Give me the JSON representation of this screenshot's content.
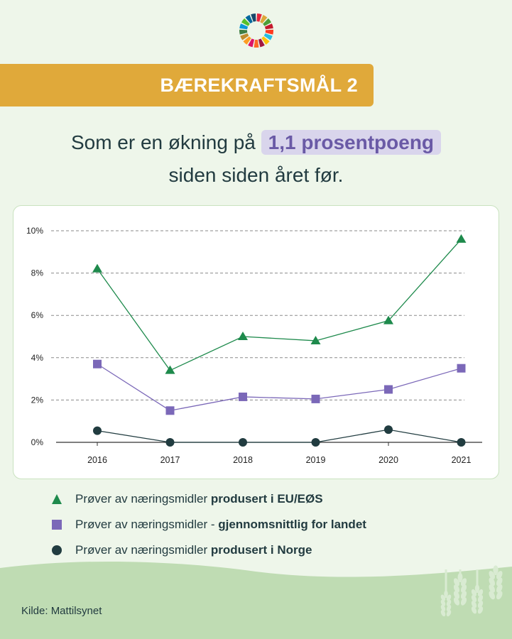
{
  "header": {
    "banner_title": "BÆREKRAFTSMÅL 2",
    "sdg_wheel_icon": "sdg-wheel-icon"
  },
  "headline": {
    "line1_prefix": "Som er en økning på ",
    "highlight": "1,1 prosentpoeng",
    "line2": "siden siden året før."
  },
  "chart_data": {
    "type": "line",
    "x": [
      "2016",
      "2017",
      "2018",
      "2019",
      "2020",
      "2021"
    ],
    "y_ticks": [
      "0%",
      "2%",
      "4%",
      "6%",
      "8%",
      "10%"
    ],
    "ylim": [
      0,
      10
    ],
    "grid": true,
    "series": [
      {
        "values": [
          8.2,
          3.4,
          5.0,
          4.8,
          5.75,
          9.6
        ],
        "color": "#1e8a4c",
        "marker": "triangle"
      },
      {
        "values": [
          3.7,
          1.5,
          2.15,
          2.05,
          2.5,
          3.5
        ],
        "color": "#7b68b8",
        "marker": "square"
      },
      {
        "values": [
          0.55,
          0.0,
          0.0,
          0.0,
          0.6,
          0.0
        ],
        "color": "#213c40",
        "marker": "circle"
      }
    ]
  },
  "legend": [
    {
      "prefix": "Prøver av næringsmidler ",
      "bold": "produsert i EU/EØS",
      "marker": "triangle",
      "color": "#1e8a4c"
    },
    {
      "prefix": "Prøver av næringsmidler - ",
      "bold": "gjennomsnittlig for landet",
      "marker": "square",
      "color": "#7b68b8"
    },
    {
      "prefix": "Prøver av næringsmidler ",
      "bold": "produsert i Norge",
      "marker": "circle",
      "color": "#213c40"
    }
  ],
  "footer": {
    "source": "Kilde: Mattilsynet"
  },
  "colors": {
    "banner": "#e0a93a",
    "background": "#eef6ea",
    "ground": "#bfdcb3",
    "highlight_bg": "#d9d5ec"
  }
}
